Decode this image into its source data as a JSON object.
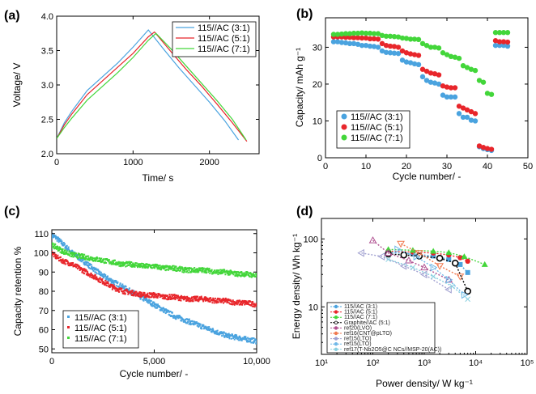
{
  "colors": {
    "blue": "#4aa3df",
    "red": "#e8262b",
    "green": "#43d63a",
    "black": "#000000"
  },
  "chart_data": [
    {
      "panel": "(a)",
      "type": "line",
      "xlabel": "Time/ s",
      "ylabel": "Voltage/ V",
      "xlim": [
        0,
        2650
      ],
      "ylim": [
        2.0,
        4.0
      ],
      "xticks": [
        "0",
        "1000",
        "2000"
      ],
      "yticks": [
        "2.0",
        "2.5",
        "3.0",
        "3.5",
        "4.0"
      ],
      "legend_position": "top-right",
      "series": [
        {
          "name": "115//AC (3:1)",
          "color": "#4aa3df",
          "x": [
            0,
            100,
            200,
            400,
            600,
            800,
            1000,
            1200,
            1400,
            1600,
            1800,
            2000,
            2200,
            2380
          ],
          "y": [
            2.22,
            2.45,
            2.62,
            2.92,
            3.12,
            3.32,
            3.55,
            3.8,
            3.52,
            3.25,
            3.0,
            2.75,
            2.48,
            2.2
          ]
        },
        {
          "name": "115//AC (5:1)",
          "color": "#e8262b",
          "x": [
            0,
            100,
            200,
            400,
            600,
            800,
            1000,
            1200,
            1280,
            1500,
            1700,
            1900,
            2100,
            2300,
            2490
          ],
          "y": [
            2.22,
            2.42,
            2.58,
            2.86,
            3.06,
            3.26,
            3.46,
            3.7,
            3.77,
            3.48,
            3.22,
            2.98,
            2.72,
            2.45,
            2.18
          ]
        },
        {
          "name": "115//AC (7:1)",
          "color": "#43d63a",
          "x": [
            0,
            100,
            200,
            400,
            600,
            800,
            1000,
            1200,
            1300,
            1500,
            1700,
            1900,
            2100,
            2300,
            2480
          ],
          "y": [
            2.22,
            2.38,
            2.52,
            2.78,
            2.98,
            3.18,
            3.4,
            3.65,
            3.75,
            3.52,
            3.27,
            3.02,
            2.77,
            2.5,
            2.2
          ]
        }
      ]
    },
    {
      "panel": "(b)",
      "type": "scatter",
      "xlabel": "Cycle number/ -",
      "ylabel": "Capacity/ mAh g⁻¹",
      "xlim": [
        0,
        50
      ],
      "ylim": [
        0,
        38
      ],
      "xticks": [
        "0",
        "10",
        "20",
        "30",
        "40",
        "50"
      ],
      "yticks": [
        "0",
        "10",
        "20",
        "30"
      ],
      "legend_position": "bottom-left",
      "series": [
        {
          "name": "115//AC (3:1)",
          "color": "#4aa3df",
          "x": [
            2,
            3,
            4,
            5,
            6,
            7,
            8,
            9,
            10,
            11,
            12,
            13,
            14,
            15,
            16,
            17,
            18,
            19,
            20,
            21,
            22,
            23,
            24,
            25,
            26,
            27,
            28,
            29,
            30,
            31,
            32,
            33,
            34,
            35,
            36,
            37,
            38,
            39,
            40,
            41,
            42,
            43,
            44,
            45
          ],
          "y": [
            31.5,
            31.5,
            31.3,
            31.2,
            31,
            31,
            30.8,
            30.5,
            30.5,
            30.3,
            30.2,
            30,
            29,
            28.6,
            28.5,
            28.4,
            28.3,
            26.5,
            26,
            25.8,
            25.5,
            25.3,
            22,
            21,
            20.5,
            20.3,
            20,
            17,
            16.5,
            16.5,
            16.5,
            12,
            11,
            11,
            10.2,
            10,
            3,
            2.5,
            2.2,
            2.0,
            30.5,
            30.5,
            30.5,
            30.3
          ]
        },
        {
          "name": "115//AC (5:1)",
          "color": "#e8262b",
          "x": [
            2,
            3,
            4,
            5,
            6,
            7,
            8,
            9,
            10,
            11,
            12,
            13,
            14,
            15,
            16,
            17,
            18,
            19,
            20,
            21,
            22,
            23,
            24,
            25,
            26,
            27,
            28,
            29,
            30,
            31,
            32,
            33,
            34,
            35,
            36,
            37,
            38,
            39,
            40,
            41,
            42,
            43,
            44,
            45
          ],
          "y": [
            32.8,
            32.8,
            32.8,
            32.7,
            32.7,
            32.6,
            32.6,
            32.5,
            32.5,
            32.3,
            32.3,
            32.2,
            31,
            30.5,
            30.3,
            30.2,
            30,
            29,
            28.5,
            28.2,
            28,
            27.8,
            24,
            23.5,
            23,
            22.8,
            22.5,
            19.5,
            19.2,
            19,
            19,
            14,
            13.5,
            13,
            12.5,
            12,
            3.2,
            2.8,
            2.5,
            2.3,
            31.8,
            31.5,
            31.5,
            31.4
          ]
        },
        {
          "name": "115//AC (7:1)",
          "color": "#43d63a",
          "x": [
            2,
            3,
            4,
            5,
            6,
            7,
            8,
            9,
            10,
            11,
            12,
            13,
            14,
            15,
            16,
            17,
            18,
            19,
            20,
            21,
            22,
            23,
            24,
            25,
            26,
            27,
            28,
            29,
            30,
            31,
            32,
            33,
            34,
            35,
            36,
            37,
            38,
            39,
            40,
            41,
            42,
            43,
            44,
            45
          ],
          "y": [
            33.5,
            33.5,
            33.6,
            33.7,
            33.7,
            33.8,
            33.8,
            33.9,
            33.8,
            33.8,
            33.7,
            33.7,
            33.2,
            33,
            33,
            32.9,
            32.8,
            32.5,
            32.4,
            32.2,
            32.2,
            32.1,
            31,
            30.5,
            30,
            30,
            29.8,
            28.5,
            28,
            27.5,
            27.3,
            27,
            25,
            24.5,
            24,
            23.7,
            21,
            20.5,
            17.5,
            17.2,
            34,
            34,
            34,
            34
          ]
        }
      ]
    },
    {
      "panel": "(c)",
      "type": "scatter",
      "xlabel": "Cycle number/ -",
      "ylabel": "Capacity retention %",
      "xlim": [
        0,
        10000
      ],
      "ylim": [
        48,
        112
      ],
      "xticks": [
        "0",
        "5,000",
        "10,000"
      ],
      "yticks": [
        "50",
        "60",
        "70",
        "80",
        "90",
        "100",
        "110"
      ],
      "legend_position": "bottom-left",
      "series": [
        {
          "name": "115//AC (3:1)",
          "color": "#4aa3df",
          "x": [
            0,
            200,
            500,
            1000,
            1500,
            2000,
            2500,
            3000,
            3500,
            4000,
            4500,
            5000,
            5500,
            6000,
            6500,
            7000,
            7500,
            8000,
            8500,
            9000,
            9500,
            10000
          ],
          "y": [
            109,
            108,
            105,
            100,
            96,
            92,
            88,
            85,
            82,
            79,
            76,
            73,
            70,
            67,
            65,
            63,
            61,
            59,
            57,
            56,
            55,
            54
          ]
        },
        {
          "name": "115//AC (5:1)",
          "color": "#e8262b",
          "x": [
            0,
            200,
            500,
            1000,
            1500,
            2000,
            2500,
            3000,
            3500,
            4000,
            4500,
            5000,
            5500,
            6000,
            6500,
            7000,
            7500,
            8000,
            8500,
            9000,
            9500,
            10000
          ],
          "y": [
            100,
            98,
            96,
            94,
            91,
            88,
            85,
            82,
            80,
            79,
            78,
            78,
            77,
            77,
            76,
            76,
            76,
            75,
            75,
            74,
            74,
            73
          ]
        },
        {
          "name": "115//AC (7:1)",
          "color": "#43d63a",
          "x": [
            0,
            200,
            500,
            1000,
            1500,
            2000,
            2500,
            3000,
            3500,
            4000,
            4500,
            5000,
            5500,
            6000,
            6500,
            7000,
            7500,
            8000,
            8500,
            9000,
            9500,
            10000
          ],
          "y": [
            104,
            103,
            101,
            99,
            98,
            97,
            96,
            95,
            94,
            94,
            93,
            93,
            92,
            92,
            91,
            91,
            91,
            90,
            90,
            89,
            89,
            88
          ]
        }
      ]
    },
    {
      "panel": "(d)",
      "type": "scatter",
      "xlabel": "Power density/ W kg⁻¹",
      "ylabel": "Energy density/ Wh kg⁻¹",
      "xscale": "log",
      "yscale": "log",
      "xlim": [
        10,
        100000
      ],
      "ylim": [
        2,
        200
      ],
      "xticks": [
        "10¹",
        "10²",
        "10³",
        "10⁴",
        "10⁵"
      ],
      "yticks": [
        "10",
        "100"
      ],
      "legend_position": "bottom-left",
      "series": [
        {
          "name": "115//AC (3:1)",
          "color": "#4aa3df",
          "marker": "square",
          "x": [
            200,
            600,
            1500,
            3000,
            5000,
            7000
          ],
          "y": [
            63,
            60,
            56,
            50,
            42,
            32
          ]
        },
        {
          "name": "115//AC (5:1)",
          "color": "#e8262b",
          "marker": "circle",
          "x": [
            200,
            600,
            1500,
            3000,
            5000,
            7000
          ],
          "y": [
            66,
            64,
            62,
            58,
            53,
            47
          ]
        },
        {
          "name": "115//AC (7:1)",
          "color": "#43d63a",
          "marker": "triangle",
          "x": [
            200,
            600,
            1500,
            3000,
            6000,
            15000
          ],
          "y": [
            70,
            68,
            66,
            63,
            55,
            42
          ]
        },
        {
          "name": "Graphite//AC (5:1)",
          "color": "#000000",
          "marker": "open-circle",
          "x": [
            200,
            400,
            800,
            2000,
            4000,
            7000
          ],
          "y": [
            60,
            58,
            56,
            52,
            44,
            17
          ]
        },
        {
          "name": "ref20(LVO)",
          "color": "#b05090",
          "marker": "open-triangle",
          "x": [
            100,
            200,
            500,
            1000,
            3000
          ],
          "y": [
            95,
            62,
            48,
            38,
            25
          ]
        },
        {
          "name": "ref16(CNT@pLTO)",
          "color": "#f07a50",
          "marker": "open-triangle-down",
          "x": [
            350,
            800,
            2000,
            5000
          ],
          "y": [
            85,
            62,
            40,
            28
          ]
        },
        {
          "name": "ref15(LTO)",
          "color": "#a0a0d0",
          "marker": "open-triangle-left",
          "x": [
            60,
            150,
            400,
            1000,
            3000
          ],
          "y": [
            62,
            55,
            40,
            30,
            18
          ]
        },
        {
          "name": "ref15(LTO)",
          "color": "#70b8e8",
          "marker": "open-triangle-right",
          "x": [
            300,
            700,
            1500,
            3000,
            6000
          ],
          "y": [
            70,
            55,
            38,
            25,
            15
          ]
        },
        {
          "name": "ref17(T-Nb2O5@C NCs//MSP-20(AC))",
          "color": "#8ad0e0",
          "marker": "cross",
          "x": [
            200,
            600,
            1500,
            3500,
            7000
          ],
          "y": [
            50,
            38,
            28,
            20,
            13
          ]
        }
      ]
    }
  ]
}
